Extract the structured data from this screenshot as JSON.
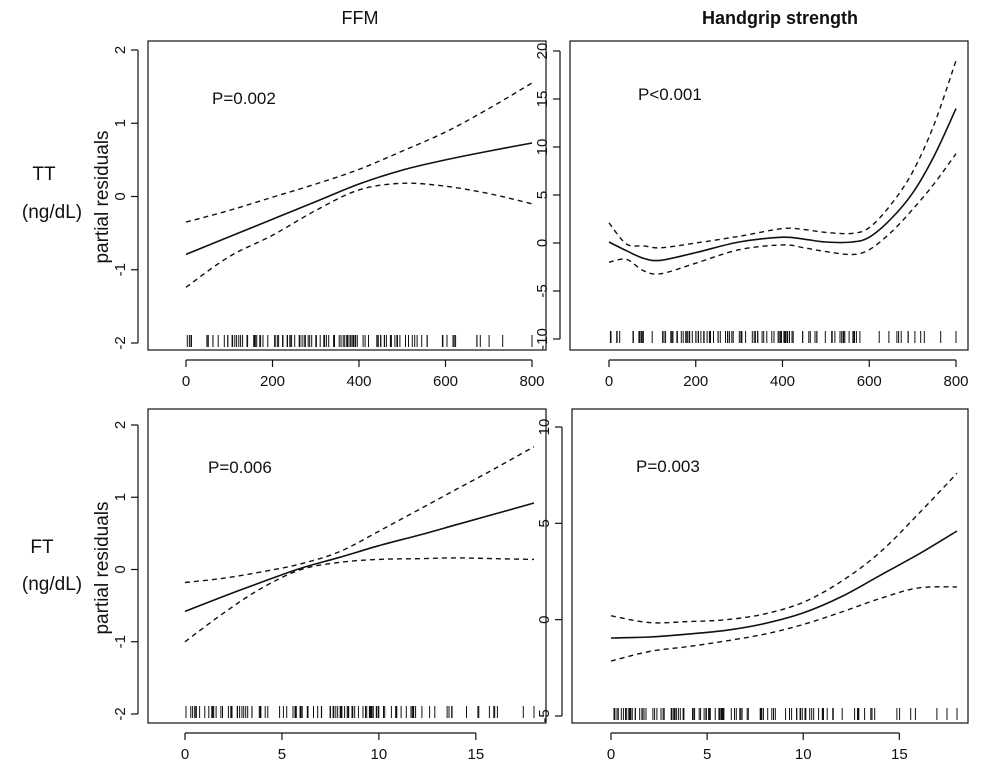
{
  "column_titles": [
    "FFM",
    "Handgrip strength"
  ],
  "row_labels": [
    {
      "name": "TT",
      "unit": "(ng/dL)"
    },
    {
      "name": "FT",
      "unit": "(ng/dL)"
    }
  ],
  "y_axis_label": "partial residuals",
  "chart_data": [
    {
      "type": "line",
      "row": 0,
      "col": 0,
      "annotation": "P=0.002",
      "xlim": [
        0,
        800
      ],
      "ylim": [
        -2,
        2
      ],
      "xticks": [
        0,
        200,
        400,
        600,
        800
      ],
      "yticks": [
        -2,
        -1,
        0,
        1,
        2
      ],
      "series": [
        {
          "style": "solid",
          "x": [
            0,
            100,
            200,
            300,
            400,
            500,
            600,
            700,
            800
          ],
          "y": [
            -0.79,
            -0.55,
            -0.31,
            -0.07,
            0.17,
            0.36,
            0.5,
            0.62,
            0.73
          ]
        },
        {
          "style": "dashed",
          "x": [
            0,
            100,
            200,
            300,
            400,
            500,
            600,
            700,
            800
          ],
          "y": [
            -0.35,
            -0.19,
            -0.01,
            0.17,
            0.37,
            0.62,
            0.88,
            1.2,
            1.55
          ]
        },
        {
          "style": "dashed",
          "x": [
            0,
            100,
            200,
            300,
            400,
            500,
            600,
            700,
            800
          ],
          "y": [
            -1.24,
            -0.82,
            -0.53,
            -0.19,
            0.09,
            0.18,
            0.14,
            0.04,
            -0.1
          ]
        }
      ],
      "rug": {
        "density": [
          [
            0,
            560,
            1.0
          ],
          [
            560,
            700,
            0.35
          ],
          [
            700,
            800,
            0.12
          ]
        ]
      }
    },
    {
      "type": "line",
      "row": 0,
      "col": 1,
      "annotation": "P<0.001",
      "xlim": [
        0,
        800
      ],
      "ylim": [
        -10,
        20
      ],
      "xticks": [
        0,
        200,
        400,
        600,
        800
      ],
      "yticks": [
        -10,
        -5,
        0,
        5,
        10,
        15,
        20
      ],
      "series": [
        {
          "style": "solid",
          "x": [
            0,
            40,
            80,
            120,
            200,
            300,
            400,
            450,
            500,
            560,
            600,
            650,
            700,
            750,
            800
          ],
          "y": [
            0.1,
            -0.8,
            -1.6,
            -1.8,
            -1.0,
            0.1,
            0.6,
            0.4,
            0.1,
            0.1,
            0.6,
            2.5,
            5.2,
            9.1,
            14.0
          ]
        },
        {
          "style": "dashed",
          "x": [
            0,
            40,
            80,
            120,
            200,
            300,
            400,
            450,
            500,
            560,
            600,
            650,
            700,
            750,
            800
          ],
          "y": [
            2.1,
            -0.1,
            -0.3,
            -0.5,
            0.0,
            0.7,
            1.5,
            1.4,
            1.1,
            1.0,
            1.6,
            4.0,
            7.4,
            12.4,
            19.0
          ]
        },
        {
          "style": "dashed",
          "x": [
            0,
            40,
            80,
            120,
            200,
            300,
            400,
            450,
            500,
            560,
            600,
            650,
            700,
            750,
            800
          ],
          "y": [
            -2.0,
            -1.7,
            -2.9,
            -3.2,
            -2.1,
            -0.7,
            -0.2,
            -0.5,
            -0.9,
            -1.2,
            -0.7,
            1.1,
            3.5,
            6.2,
            9.3
          ]
        }
      ],
      "rug": {
        "density": [
          [
            0,
            580,
            1.0
          ],
          [
            580,
            720,
            0.35
          ],
          [
            720,
            800,
            0.1
          ]
        ]
      }
    },
    {
      "type": "line",
      "row": 1,
      "col": 0,
      "annotation": "P=0.006",
      "xlim": [
        0,
        18
      ],
      "ylim": [
        -2,
        2
      ],
      "xticks": [
        0,
        5,
        10,
        15
      ],
      "yticks": [
        -2,
        -1,
        0,
        1,
        2
      ],
      "series": [
        {
          "style": "solid",
          "x": [
            0,
            2,
            4,
            6,
            8,
            10,
            12,
            14,
            16,
            18
          ],
          "y": [
            -0.58,
            -0.37,
            -0.17,
            0.02,
            0.17,
            0.33,
            0.47,
            0.62,
            0.77,
            0.92
          ]
        },
        {
          "style": "dashed",
          "x": [
            0,
            2,
            4,
            6,
            8,
            10,
            12,
            14,
            16,
            18
          ],
          "y": [
            -0.18,
            -0.12,
            -0.03,
            0.08,
            0.25,
            0.53,
            0.82,
            1.11,
            1.4,
            1.7
          ]
        },
        {
          "style": "dashed",
          "x": [
            0,
            2,
            4,
            6,
            8,
            10,
            12,
            14,
            16,
            18
          ],
          "y": [
            -1.0,
            -0.6,
            -0.25,
            0.0,
            0.1,
            0.14,
            0.15,
            0.16,
            0.15,
            0.14
          ]
        }
      ],
      "rug": {
        "density": [
          [
            0,
            12,
            1.0
          ],
          [
            12,
            16,
            0.4
          ],
          [
            16,
            18,
            0.12
          ]
        ]
      }
    },
    {
      "type": "line",
      "row": 1,
      "col": 1,
      "annotation": "P=0.003",
      "xlim": [
        0,
        18
      ],
      "ylim": [
        -5,
        10
      ],
      "xticks": [
        0,
        5,
        10,
        15
      ],
      "yticks": [
        -5,
        0,
        5,
        10
      ],
      "series": [
        {
          "style": "solid",
          "x": [
            0,
            2,
            4,
            6,
            8,
            10,
            12,
            14,
            16,
            18
          ],
          "y": [
            -0.95,
            -0.9,
            -0.75,
            -0.55,
            -0.2,
            0.35,
            1.2,
            2.3,
            3.4,
            4.6
          ]
        },
        {
          "style": "dashed",
          "x": [
            0,
            2,
            4,
            6,
            8,
            10,
            12,
            14,
            16,
            18
          ],
          "y": [
            0.2,
            -0.15,
            -0.1,
            0.0,
            0.3,
            0.9,
            2.0,
            3.5,
            5.5,
            7.6
          ]
        },
        {
          "style": "dashed",
          "x": [
            0,
            2,
            4,
            6,
            8,
            10,
            12,
            14,
            16,
            18
          ],
          "y": [
            -2.15,
            -1.65,
            -1.4,
            -1.1,
            -0.75,
            -0.25,
            0.4,
            1.1,
            1.65,
            1.7
          ]
        }
      ],
      "rug": {
        "density": [
          [
            0,
            12,
            1.0
          ],
          [
            12,
            16,
            0.4
          ],
          [
            16,
            18,
            0.12
          ]
        ]
      }
    }
  ]
}
